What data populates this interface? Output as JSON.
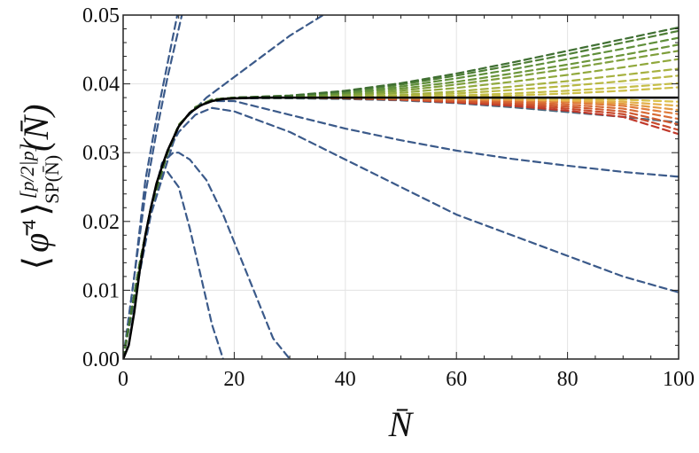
{
  "chart_data": {
    "type": "line",
    "title": "",
    "xlabel": "N̄",
    "ylabel": {
      "open": "⟨",
      "phi": "φ̄",
      "power": "4",
      "close": "⟩",
      "sup": "[p/2|p]",
      "sub": "SP(N̄)",
      "arg": "(N̄)"
    },
    "xlim": [
      0,
      100
    ],
    "ylim": [
      0,
      0.05
    ],
    "x_ticks": [
      0,
      20,
      40,
      60,
      80,
      100
    ],
    "x_tick_labels": [
      "0",
      "20",
      "40",
      "60",
      "80",
      "100"
    ],
    "y_ticks": [
      0,
      0.01,
      0.02,
      0.03,
      0.04,
      0.05
    ],
    "y_tick_labels": [
      "0.00",
      "0.01",
      "0.02",
      "0.03",
      "0.04",
      "0.05"
    ],
    "grid": true,
    "colors": {
      "low_order": "#3b5a8a",
      "exact": "#000000",
      "red": "#c0392b",
      "orange": "#e07b3a",
      "yellow": "#d9c24a",
      "green": "#5f8f3a"
    },
    "series": [
      {
        "style": "dashed",
        "color": "#3b5a8a",
        "x": [
          0,
          2,
          4,
          6,
          8,
          10
        ],
        "y": [
          0,
          0.012,
          0.026,
          0.035,
          0.043,
          0.051
        ]
      },
      {
        "style": "dashed",
        "color": "#3b5a8a",
        "x": [
          0,
          2,
          4,
          6,
          8,
          10,
          12
        ],
        "y": [
          0,
          0.012,
          0.024,
          0.033,
          0.041,
          0.048,
          0.055
        ]
      },
      {
        "style": "dashed",
        "color": "#3b5a8a",
        "x": [
          0,
          5,
          10,
          15,
          20,
          25,
          30,
          35,
          40
        ],
        "y": [
          0,
          0.021,
          0.034,
          0.038,
          0.041,
          0.044,
          0.047,
          0.0495,
          0.052
        ]
      },
      {
        "style": "dashed",
        "color": "#3b5a8a",
        "x": [
          0,
          3,
          5,
          7,
          8,
          10,
          12,
          14,
          16,
          18
        ],
        "y": [
          0,
          0.014,
          0.022,
          0.027,
          0.0272,
          0.025,
          0.019,
          0.012,
          0.005,
          0
        ]
      },
      {
        "style": "dashed",
        "color": "#3b5a8a",
        "x": [
          0,
          3,
          5,
          7,
          9,
          10,
          12,
          15,
          18,
          21,
          24,
          27,
          30
        ],
        "y": [
          0,
          0.014,
          0.022,
          0.0285,
          0.03,
          0.03,
          0.029,
          0.026,
          0.021,
          0.015,
          0.009,
          0.003,
          0
        ]
      },
      {
        "style": "dashed",
        "color": "#3b5a8a",
        "x": [
          0,
          3,
          5,
          8,
          10,
          13,
          16,
          20,
          30,
          40,
          50,
          60,
          70,
          80,
          90,
          100
        ],
        "y": [
          0,
          0.014,
          0.022,
          0.03,
          0.033,
          0.0355,
          0.0365,
          0.036,
          0.033,
          0.029,
          0.025,
          0.021,
          0.018,
          0.015,
          0.012,
          0.0097
        ]
      },
      {
        "style": "dashed",
        "color": "#3b5a8a",
        "x": [
          0,
          3,
          5,
          8,
          10,
          13,
          16,
          20,
          30,
          40,
          50,
          60,
          70,
          80,
          90,
          100
        ],
        "y": [
          0,
          0.014,
          0.022,
          0.03,
          0.034,
          0.0365,
          0.0375,
          0.0375,
          0.0355,
          0.0335,
          0.0318,
          0.0303,
          0.0291,
          0.0281,
          0.0272,
          0.0265
        ]
      },
      {
        "style": "dashed",
        "color": "#4a6a80",
        "x": [
          0,
          3,
          5,
          8,
          10,
          13,
          16,
          20,
          30,
          40,
          50,
          60,
          70,
          80,
          90,
          100
        ],
        "y": [
          0,
          0.014,
          0.022,
          0.03,
          0.034,
          0.0366,
          0.0377,
          0.0379,
          0.0379,
          0.0378,
          0.0376,
          0.0372,
          0.0366,
          0.0359,
          0.0352,
          0.0344
        ]
      },
      {
        "style": "dashed",
        "color": "#c0392b",
        "x": [
          0,
          3,
          5,
          8,
          10,
          13,
          16,
          20,
          30,
          40,
          50,
          60,
          70,
          80,
          90,
          100
        ],
        "y": [
          0,
          0.014,
          0.022,
          0.03,
          0.034,
          0.0366,
          0.0377,
          0.038,
          0.038,
          0.0379,
          0.0377,
          0.0373,
          0.0368,
          0.0361,
          0.0352,
          0.0327
        ]
      },
      {
        "style": "dashed",
        "color": "#c84a2c",
        "x": [
          0,
          3,
          5,
          8,
          10,
          13,
          16,
          20,
          30,
          40,
          50,
          60,
          70,
          80,
          90,
          100
        ],
        "y": [
          0,
          0.014,
          0.022,
          0.03,
          0.034,
          0.0366,
          0.0377,
          0.038,
          0.038,
          0.0379,
          0.0377,
          0.0374,
          0.037,
          0.0364,
          0.0356,
          0.0333
        ]
      },
      {
        "style": "dashed",
        "color": "#d05a30",
        "x": [
          0,
          3,
          5,
          8,
          10,
          13,
          16,
          20,
          30,
          40,
          50,
          60,
          70,
          80,
          90,
          100
        ],
        "y": [
          0,
          0.014,
          0.022,
          0.03,
          0.034,
          0.0366,
          0.0377,
          0.038,
          0.038,
          0.038,
          0.0378,
          0.0375,
          0.0372,
          0.0367,
          0.036,
          0.0341
        ]
      },
      {
        "style": "dashed",
        "color": "#d86a34",
        "x": [
          0,
          3,
          5,
          8,
          10,
          13,
          16,
          20,
          30,
          40,
          50,
          60,
          70,
          80,
          90,
          100
        ],
        "y": [
          0,
          0.014,
          0.022,
          0.03,
          0.034,
          0.0366,
          0.0377,
          0.038,
          0.038,
          0.038,
          0.0379,
          0.0377,
          0.0374,
          0.037,
          0.0364,
          0.0349
        ]
      },
      {
        "style": "dashed",
        "color": "#e07b3a",
        "x": [
          0,
          3,
          5,
          8,
          10,
          13,
          16,
          20,
          30,
          40,
          50,
          60,
          70,
          80,
          90,
          100
        ],
        "y": [
          0,
          0.014,
          0.022,
          0.03,
          0.034,
          0.0366,
          0.0377,
          0.038,
          0.038,
          0.038,
          0.0379,
          0.0378,
          0.0376,
          0.0373,
          0.0368,
          0.0356
        ]
      },
      {
        "style": "dashed",
        "color": "#e39a42",
        "x": [
          0,
          3,
          5,
          8,
          10,
          13,
          16,
          20,
          30,
          40,
          50,
          60,
          70,
          80,
          90,
          100
        ],
        "y": [
          0,
          0.014,
          0.022,
          0.03,
          0.034,
          0.0366,
          0.0377,
          0.038,
          0.038,
          0.038,
          0.0379,
          0.0378,
          0.0377,
          0.0375,
          0.0371,
          0.0362
        ]
      },
      {
        "style": "dashed",
        "color": "#e4b04a",
        "x": [
          0,
          3,
          5,
          8,
          10,
          13,
          16,
          20,
          30,
          40,
          50,
          60,
          70,
          80,
          90,
          100
        ],
        "y": [
          0,
          0.014,
          0.022,
          0.03,
          0.034,
          0.0366,
          0.0377,
          0.038,
          0.038,
          0.038,
          0.038,
          0.0379,
          0.0378,
          0.0376,
          0.0374,
          0.0368
        ]
      },
      {
        "style": "dashed",
        "color": "#d9c24a",
        "x": [
          0,
          3,
          5,
          8,
          10,
          13,
          16,
          20,
          30,
          40,
          50,
          60,
          70,
          80,
          90,
          100
        ],
        "y": [
          0,
          0.014,
          0.022,
          0.03,
          0.034,
          0.0366,
          0.0377,
          0.038,
          0.038,
          0.038,
          0.038,
          0.038,
          0.0379,
          0.0378,
          0.0377,
          0.0374
        ]
      },
      {
        "style": "dashed",
        "color": "#cdbf48",
        "x": [
          0,
          3,
          5,
          8,
          10,
          13,
          16,
          20,
          30,
          40,
          50,
          60,
          70,
          80,
          90,
          100
        ],
        "y": [
          0,
          0.014,
          0.022,
          0.03,
          0.034,
          0.0366,
          0.0377,
          0.038,
          0.038,
          0.038,
          0.038,
          0.0381,
          0.0383,
          0.0386,
          0.039,
          0.0395
        ]
      },
      {
        "style": "dashed",
        "color": "#c4bd46",
        "x": [
          0,
          3,
          5,
          8,
          10,
          13,
          16,
          20,
          30,
          40,
          50,
          60,
          70,
          80,
          90,
          100
        ],
        "y": [
          0,
          0.014,
          0.022,
          0.03,
          0.034,
          0.0366,
          0.0377,
          0.038,
          0.038,
          0.038,
          0.0381,
          0.0383,
          0.0386,
          0.039,
          0.0395,
          0.0401
        ]
      },
      {
        "style": "dashed",
        "color": "#b8b843",
        "x": [
          0,
          3,
          5,
          8,
          10,
          13,
          16,
          20,
          30,
          40,
          50,
          60,
          70,
          80,
          90,
          100
        ],
        "y": [
          0,
          0.014,
          0.022,
          0.03,
          0.034,
          0.0366,
          0.0377,
          0.038,
          0.038,
          0.0381,
          0.0383,
          0.0386,
          0.0391,
          0.0397,
          0.0404,
          0.0412
        ]
      },
      {
        "style": "dashed",
        "color": "#a6b140",
        "x": [
          0,
          3,
          5,
          8,
          10,
          13,
          16,
          20,
          30,
          40,
          50,
          60,
          70,
          80,
          90,
          100
        ],
        "y": [
          0,
          0.014,
          0.022,
          0.03,
          0.034,
          0.0366,
          0.0377,
          0.038,
          0.038,
          0.0381,
          0.0384,
          0.0389,
          0.0396,
          0.0404,
          0.0413,
          0.0422
        ]
      },
      {
        "style": "dashed",
        "color": "#90a83c",
        "x": [
          0,
          3,
          5,
          8,
          10,
          13,
          16,
          20,
          30,
          40,
          50,
          60,
          70,
          80,
          90,
          100
        ],
        "y": [
          0,
          0.014,
          0.022,
          0.03,
          0.034,
          0.0366,
          0.0377,
          0.038,
          0.0381,
          0.0383,
          0.0387,
          0.0394,
          0.0403,
          0.0413,
          0.0424,
          0.0436
        ]
      },
      {
        "style": "dashed",
        "color": "#7e9e3b",
        "x": [
          0,
          3,
          5,
          8,
          10,
          13,
          16,
          20,
          30,
          40,
          50,
          60,
          70,
          80,
          90,
          100
        ],
        "y": [
          0,
          0.014,
          0.022,
          0.03,
          0.034,
          0.0366,
          0.0377,
          0.038,
          0.0381,
          0.0384,
          0.039,
          0.0399,
          0.041,
          0.0422,
          0.0435,
          0.0448
        ]
      },
      {
        "style": "dashed",
        "color": "#6b953a",
        "x": [
          0,
          3,
          5,
          8,
          10,
          13,
          16,
          20,
          30,
          40,
          50,
          60,
          70,
          80,
          90,
          100
        ],
        "y": [
          0,
          0.014,
          0.022,
          0.03,
          0.034,
          0.0366,
          0.0377,
          0.038,
          0.0382,
          0.0386,
          0.0393,
          0.0403,
          0.0415,
          0.0428,
          0.0442,
          0.0457
        ]
      },
      {
        "style": "dashed",
        "color": "#5f8f3a",
        "x": [
          0,
          3,
          5,
          8,
          10,
          13,
          16,
          20,
          30,
          40,
          50,
          60,
          70,
          80,
          90,
          100
        ],
        "y": [
          0,
          0.014,
          0.022,
          0.03,
          0.034,
          0.0366,
          0.0377,
          0.038,
          0.0382,
          0.0387,
          0.0396,
          0.0408,
          0.0421,
          0.0436,
          0.0451,
          0.0467
        ]
      },
      {
        "style": "dashed",
        "color": "#4f7f36",
        "x": [
          0,
          3,
          5,
          8,
          10,
          13,
          16,
          20,
          30,
          40,
          50,
          60,
          70,
          80,
          90,
          100
        ],
        "y": [
          0,
          0.014,
          0.022,
          0.03,
          0.034,
          0.0366,
          0.0377,
          0.038,
          0.0383,
          0.0389,
          0.0399,
          0.0412,
          0.0427,
          0.0443,
          0.046,
          0.0477
        ]
      },
      {
        "style": "dashed",
        "color": "#3f6f32",
        "x": [
          0,
          3,
          5,
          8,
          10,
          13,
          16,
          20,
          30,
          40,
          50,
          60,
          70,
          80,
          90,
          100
        ],
        "y": [
          0,
          0.014,
          0.022,
          0.03,
          0.034,
          0.0366,
          0.0377,
          0.038,
          0.0383,
          0.039,
          0.0401,
          0.0415,
          0.0431,
          0.0448,
          0.0465,
          0.0482
        ]
      },
      {
        "style": "solid",
        "color": "#000000",
        "x": [
          0,
          1,
          2,
          3,
          4,
          5,
          6,
          7,
          8,
          10,
          12,
          14,
          16,
          18,
          20,
          25,
          30,
          40,
          50,
          60,
          70,
          80,
          90,
          100
        ],
        "y": [
          0,
          0.002,
          0.0068,
          0.013,
          0.018,
          0.022,
          0.0255,
          0.028,
          0.0303,
          0.0338,
          0.0358,
          0.0369,
          0.0375,
          0.0378,
          0.0379,
          0.038,
          0.038,
          0.038,
          0.038,
          0.038,
          0.038,
          0.038,
          0.038,
          0.038
        ]
      }
    ]
  }
}
